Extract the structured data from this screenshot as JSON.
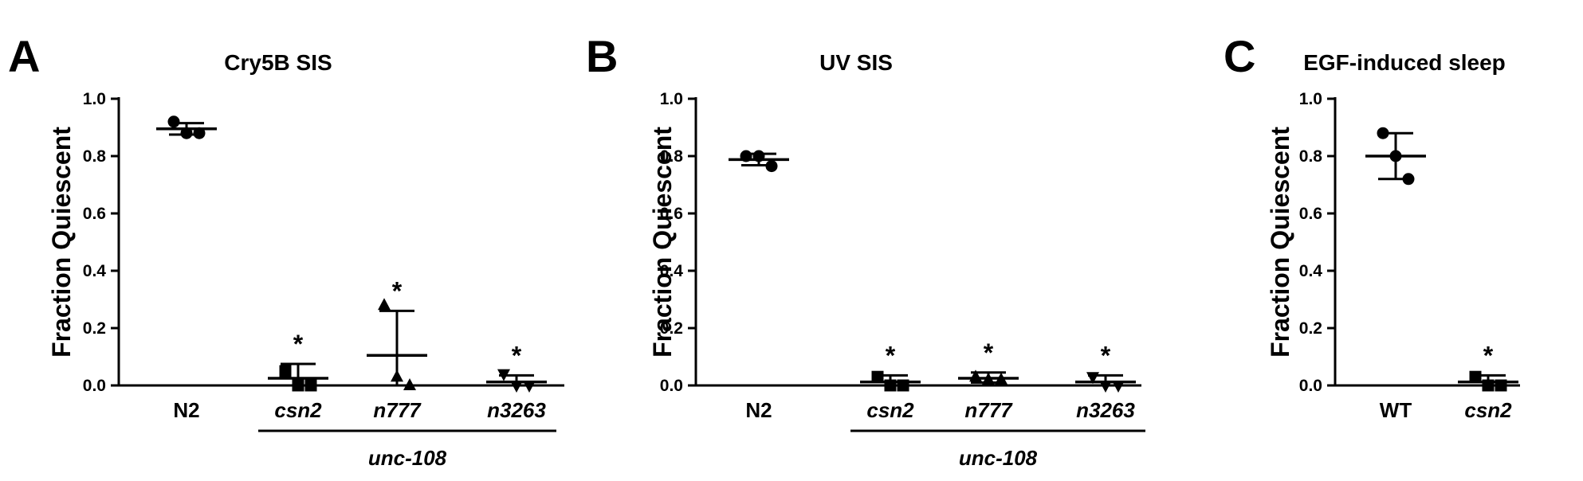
{
  "chart_data": [
    {
      "panel": "A",
      "type": "scatter",
      "title": "Cry5B SIS",
      "ylabel": "Fraction Quiescent",
      "xlabel": "",
      "ylim": [
        0,
        1.0
      ],
      "yticks": [
        "0.0",
        "0.2",
        "0.4",
        "0.6",
        "0.8",
        "1.0"
      ],
      "categories": [
        "N2",
        "csn2",
        "n777",
        "n3263"
      ],
      "italic_categories": [
        false,
        true,
        true,
        true
      ],
      "group_label": "unc-108",
      "group_span": [
        "csn2",
        "n3263"
      ],
      "series": [
        {
          "category": "N2",
          "marker": "circle",
          "points": [
            0.92,
            0.88,
            0.88
          ],
          "mean": 0.895,
          "err": [
            0.875,
            0.915
          ],
          "star": ""
        },
        {
          "category": "csn2",
          "marker": "square",
          "points": [
            0.05,
            0.0,
            0.0
          ],
          "mean": 0.025,
          "err": [
            0.0,
            0.075
          ],
          "star": "*"
        },
        {
          "category": "n777",
          "marker": "triangle-up",
          "points": [
            0.28,
            0.03,
            0.0
          ],
          "mean": 0.105,
          "err": [
            0.0,
            0.26
          ],
          "star": "*"
        },
        {
          "category": "n3263",
          "marker": "triangle-down",
          "points": [
            0.04,
            0.0,
            0.0
          ],
          "mean": 0.012,
          "err": [
            0.0,
            0.035
          ],
          "star": "*"
        }
      ]
    },
    {
      "panel": "B",
      "type": "scatter",
      "title": "UV SIS",
      "ylabel": "Fraction Quiescent",
      "xlabel": "",
      "ylim": [
        0,
        1.0
      ],
      "yticks": [
        "0.0",
        "0.2",
        "0.4",
        "0.6",
        "0.8",
        "1.0"
      ],
      "categories": [
        "N2",
        "csn2",
        "n777",
        "n3263"
      ],
      "italic_categories": [
        false,
        true,
        true,
        true
      ],
      "group_label": "unc-108",
      "group_span": [
        "csn2",
        "n3263"
      ],
      "series": [
        {
          "category": "N2",
          "marker": "circle",
          "points": [
            0.8,
            0.8,
            0.765
          ],
          "mean": 0.788,
          "err": [
            0.768,
            0.808
          ],
          "star": ""
        },
        {
          "category": "csn2",
          "marker": "square",
          "points": [
            0.03,
            0.0,
            0.0
          ],
          "mean": 0.012,
          "err": [
            0.0,
            0.035
          ],
          "star": "*"
        },
        {
          "category": "n777",
          "marker": "triangle-up",
          "points": [
            0.03,
            0.02,
            0.02
          ],
          "mean": 0.025,
          "err": [
            0.01,
            0.045
          ],
          "star": "*"
        },
        {
          "category": "n3263",
          "marker": "triangle-down",
          "points": [
            0.03,
            0.0,
            0.0
          ],
          "mean": 0.012,
          "err": [
            0.0,
            0.035
          ],
          "star": "*"
        }
      ]
    },
    {
      "panel": "C",
      "type": "scatter",
      "title": "EGF-induced sleep",
      "ylabel": "Fraction Quiescent",
      "xlabel": "",
      "ylim": [
        0,
        1.0
      ],
      "yticks": [
        "0.0",
        "0.2",
        "0.4",
        "0.6",
        "0.8",
        "1.0"
      ],
      "categories": [
        "WT",
        "csn2"
      ],
      "italic_categories": [
        false,
        true
      ],
      "group_label": "",
      "group_span": [],
      "series": [
        {
          "category": "WT",
          "marker": "circle",
          "points": [
            0.88,
            0.8,
            0.72
          ],
          "mean": 0.8,
          "err": [
            0.72,
            0.88
          ],
          "star": ""
        },
        {
          "category": "csn2",
          "marker": "square",
          "points": [
            0.03,
            0.0,
            0.0
          ],
          "mean": 0.012,
          "err": [
            0.0,
            0.035
          ],
          "star": "*"
        }
      ]
    }
  ]
}
